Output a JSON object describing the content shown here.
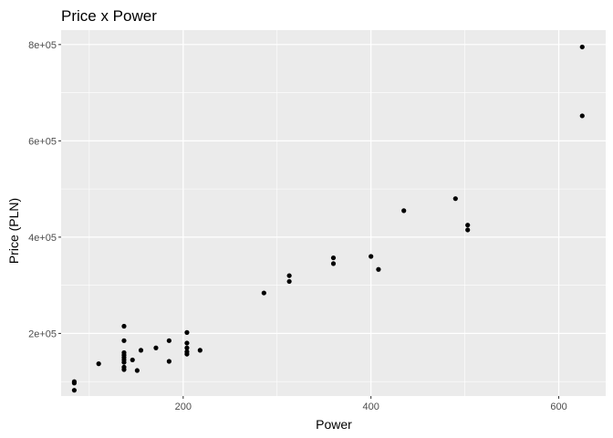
{
  "chart_data": {
    "type": "scatter",
    "title": "Price x Power",
    "xlabel": "Power",
    "ylabel": "Price (PLN)",
    "xlim": [
      70,
      650
    ],
    "ylim": [
      70000,
      830000
    ],
    "x_ticks": [
      200,
      400,
      600
    ],
    "x_tick_labels": [
      "200",
      "400",
      "600"
    ],
    "x_minor_ticks": [
      100,
      300,
      500
    ],
    "y_ticks": [
      200000,
      400000,
      600000,
      800000
    ],
    "y_tick_labels": [
      "2e+05",
      "4e+05",
      "6e+05",
      "8e+05"
    ],
    "y_minor_ticks": [
      100000,
      300000,
      500000,
      700000
    ],
    "grid": true,
    "background_color": "#ebebeb",
    "grid_color": "#ffffff",
    "point_color": "#000000",
    "points": [
      {
        "x": 84,
        "y": 100000
      },
      {
        "x": 84,
        "y": 97000
      },
      {
        "x": 84,
        "y": 82000
      },
      {
        "x": 110,
        "y": 137000
      },
      {
        "x": 137,
        "y": 215000
      },
      {
        "x": 137,
        "y": 185000
      },
      {
        "x": 137,
        "y": 160000
      },
      {
        "x": 137,
        "y": 155000
      },
      {
        "x": 137,
        "y": 150000
      },
      {
        "x": 137,
        "y": 145000
      },
      {
        "x": 137,
        "y": 140000
      },
      {
        "x": 137,
        "y": 130000
      },
      {
        "x": 137,
        "y": 125000
      },
      {
        "x": 146,
        "y": 145000
      },
      {
        "x": 151,
        "y": 123000
      },
      {
        "x": 155,
        "y": 165000
      },
      {
        "x": 171,
        "y": 170000
      },
      {
        "x": 185,
        "y": 185000
      },
      {
        "x": 185,
        "y": 142000
      },
      {
        "x": 204,
        "y": 202000
      },
      {
        "x": 204,
        "y": 180000
      },
      {
        "x": 204,
        "y": 170000
      },
      {
        "x": 204,
        "y": 162000
      },
      {
        "x": 204,
        "y": 157000
      },
      {
        "x": 218,
        "y": 165000
      },
      {
        "x": 286,
        "y": 284000
      },
      {
        "x": 313,
        "y": 320000
      },
      {
        "x": 313,
        "y": 308000
      },
      {
        "x": 360,
        "y": 357000
      },
      {
        "x": 360,
        "y": 345000
      },
      {
        "x": 400,
        "y": 360000
      },
      {
        "x": 408,
        "y": 333000
      },
      {
        "x": 435,
        "y": 455000
      },
      {
        "x": 490,
        "y": 480000
      },
      {
        "x": 503,
        "y": 425000
      },
      {
        "x": 503,
        "y": 415000
      },
      {
        "x": 625,
        "y": 795000
      },
      {
        "x": 625,
        "y": 652000
      }
    ]
  }
}
